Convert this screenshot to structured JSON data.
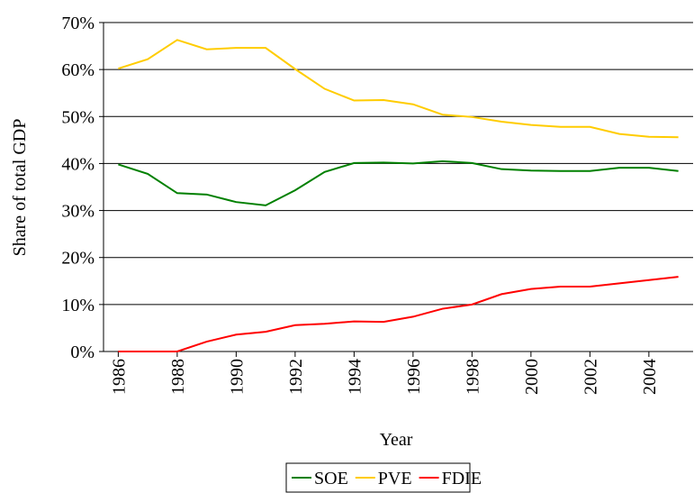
{
  "chart_data": {
    "type": "line",
    "x_label": "Year",
    "y_label": "Share of total GDP",
    "x": [
      1986,
      1987,
      1988,
      1989,
      1990,
      1991,
      1992,
      1993,
      1994,
      1995,
      1996,
      1997,
      1998,
      1999,
      2000,
      2001,
      2002,
      2003,
      2004,
      2005
    ],
    "series": [
      {
        "name": "SOE",
        "color": "#008000",
        "values": [
          39.8,
          37.8,
          33.7,
          33.4,
          31.8,
          31.1,
          34.3,
          38.2,
          40.1,
          40.2,
          40.0,
          40.5,
          40.1,
          38.8,
          38.5,
          38.4,
          38.4,
          39.1,
          39.1,
          38.4
        ]
      },
      {
        "name": "PVE",
        "color": "#ffcc00",
        "values": [
          60.2,
          62.2,
          66.3,
          64.3,
          64.6,
          64.6,
          60.1,
          55.9,
          53.4,
          53.5,
          52.6,
          50.4,
          49.9,
          48.9,
          48.2,
          47.8,
          47.8,
          46.3,
          45.7,
          45.6
        ]
      },
      {
        "name": "FDIE",
        "color": "#ff0000",
        "values": [
          0,
          0,
          0,
          2.1,
          3.6,
          4.2,
          5.6,
          5.9,
          6.4,
          6.3,
          7.4,
          9.1,
          10.0,
          12.2,
          13.3,
          13.8,
          13.8,
          14.5,
          15.2,
          15.9
        ]
      }
    ],
    "xlim": [
      1985.5,
      2005.5
    ],
    "xticks": [
      1986,
      1988,
      1990,
      1992,
      1994,
      1996,
      1998,
      2000,
      2002,
      2004
    ],
    "ylim": [
      0,
      70
    ],
    "yticks": [
      {
        "value": 0,
        "label": "0%"
      },
      {
        "value": 10,
        "label": "10%"
      },
      {
        "value": 20,
        "label": "20%"
      },
      {
        "value": 30,
        "label": "30%"
      },
      {
        "value": 40,
        "label": "40%"
      },
      {
        "value": 50,
        "label": "50%"
      },
      {
        "value": 60,
        "label": "60%"
      },
      {
        "value": 70,
        "label": "70%"
      }
    ],
    "grid": true,
    "legend": "bottom"
  }
}
